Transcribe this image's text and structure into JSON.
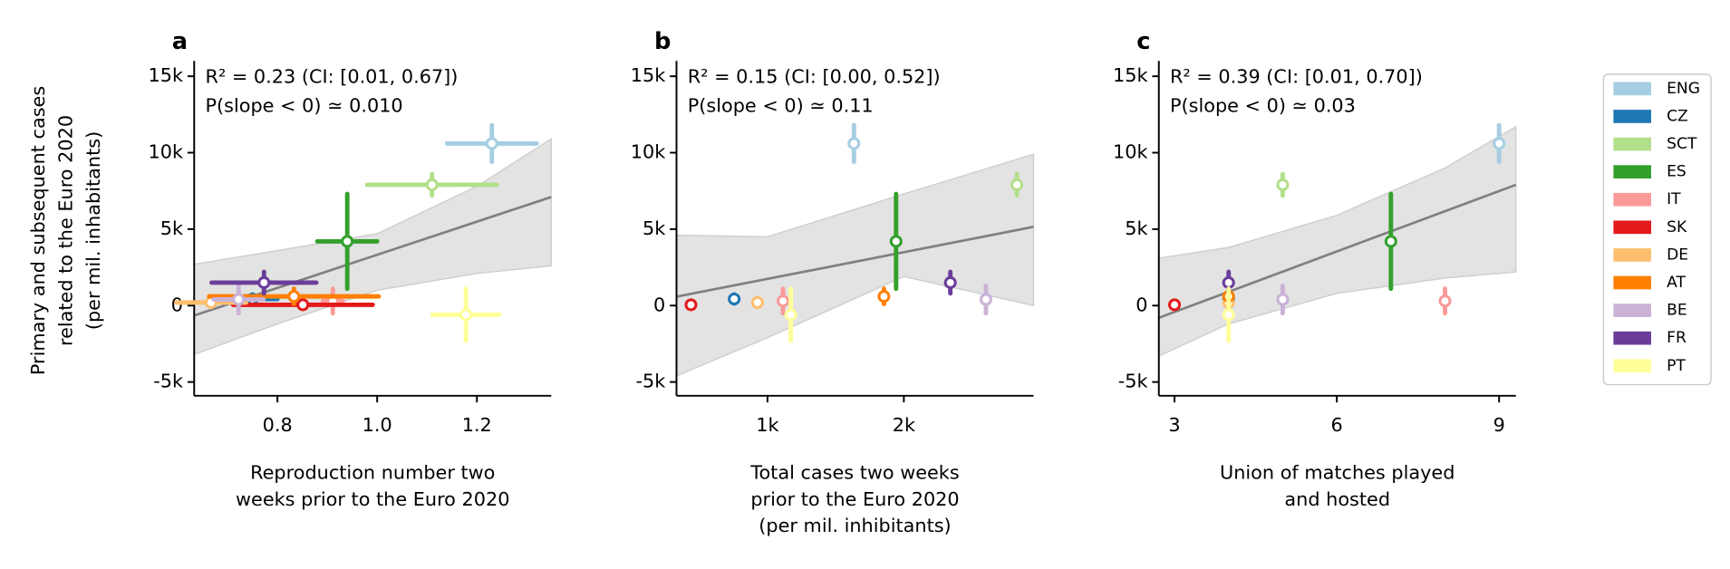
{
  "chart_data": [
    {
      "type": "scatter",
      "panel": "a",
      "annotations": [
        "R² = 0.23 (CI: [0.01, 0.67])",
        "P(slope < 0) ≃ 0.010"
      ],
      "xlabel": [
        "Reproduction number two",
        "weeks prior to the Euro 2020"
      ],
      "ylabel": [
        "Primary and subsequent cases",
        "related to the Euro 2020",
        "(per mil. inhabitants)"
      ],
      "xlim": [
        0.633,
        1.349
      ],
      "ylim": [
        -5900,
        16000
      ],
      "xticks": [
        0.8,
        {
          "value": 1.0,
          "label": "1.0"
        },
        1.2
      ],
      "yticks": [
        {
          "value": -5000,
          "label": "-5k"
        },
        0,
        {
          "value": 5000,
          "label": "5k"
        },
        {
          "value": 10000,
          "label": "10k"
        },
        {
          "value": 15000,
          "label": "15k"
        }
      ],
      "fit": {
        "x": [
          0.633,
          1.349
        ],
        "values": [
          -650,
          7100
        ]
      },
      "band": {
        "x": [
          0.633,
          0.8,
          1.0,
          1.2,
          1.349
        ],
        "upper": [
          2700,
          3600,
          4700,
          7800,
          10900
        ],
        "lower": [
          -3200,
          -1200,
          1000,
          2100,
          2600
        ]
      },
      "series": [
        {
          "name": "ENG",
          "color": "#a6cee3",
          "x": [
            1.23
          ],
          "values": [
            10600
          ],
          "x_err": [
            0.09
          ],
          "y_err": [
            1200
          ]
        },
        {
          "name": "CZ",
          "color": "#1f78b4",
          "x": [
            0.75
          ],
          "values": [
            430
          ],
          "x_err": [
            0.05
          ],
          "y_err": [
            300
          ]
        },
        {
          "name": "SCT",
          "color": "#b2df8a",
          "x": [
            1.11
          ],
          "values": [
            7900
          ],
          "x_err": [
            0.13
          ],
          "y_err": [
            700
          ]
        },
        {
          "name": "ES",
          "color": "#33a02c",
          "x": [
            0.94
          ],
          "values": [
            4200
          ],
          "x_err": [
            0.06
          ],
          "y_err": [
            3100
          ]
        },
        {
          "name": "IT",
          "color": "#fb9a99",
          "x": [
            0.911
          ],
          "values": [
            300
          ],
          "x_err": [
            0.02
          ],
          "y_err": [
            800
          ]
        },
        {
          "name": "SK",
          "color": "#e31a1c",
          "x": [
            0.851
          ],
          "values": [
            50
          ],
          "x_err": [
            0.14
          ],
          "y_err": [
            250
          ]
        },
        {
          "name": "DE",
          "color": "#fdbf6f",
          "x": [
            0.667
          ],
          "values": [
            200
          ],
          "x_err": [
            0.07
          ],
          "y_err": [
            300
          ]
        },
        {
          "name": "AT",
          "color": "#ff7f00",
          "x": [
            0.833
          ],
          "values": [
            600
          ],
          "x_err": [
            0.17
          ],
          "y_err": [
            500
          ]
        },
        {
          "name": "BE",
          "color": "#cab2d6",
          "x": [
            0.722
          ],
          "values": [
            400
          ],
          "x_err": [
            0.05
          ],
          "y_err": [
            900
          ]
        },
        {
          "name": "FR",
          "color": "#6a3d9a",
          "x": [
            0.773
          ],
          "values": [
            1500
          ],
          "x_err": [
            0.105
          ],
          "y_err": [
            700
          ]
        },
        {
          "name": "PT",
          "color": "#ffff99",
          "x": [
            1.178
          ],
          "values": [
            -600
          ],
          "x_err": [
            0.067
          ],
          "y_err": [
            1700
          ]
        }
      ]
    },
    {
      "type": "scatter",
      "panel": "b",
      "annotations": [
        "R² = 0.15 (CI: [0.00, 0.52])",
        "P(slope < 0) ≃ 0.11"
      ],
      "xlabel": [
        "Total cases two weeks",
        "prior to the Euro 2020",
        "(per mil. inhibitants)"
      ],
      "xlim": [
        333,
        2951
      ],
      "ylim": [
        -5900,
        16000
      ],
      "xticks": [
        {
          "value": 1000,
          "label": "1k"
        },
        {
          "value": 2000,
          "label": "2k"
        }
      ],
      "yticks": [
        {
          "value": -5000,
          "label": "-5k"
        },
        0,
        {
          "value": 5000,
          "label": "5k"
        },
        {
          "value": 10000,
          "label": "10k"
        },
        {
          "value": 15000,
          "label": "15k"
        }
      ],
      "fit": {
        "x": [
          333,
          2951
        ],
        "values": [
          580,
          5150
        ]
      },
      "band": {
        "x": [
          333,
          1000,
          2000,
          2951
        ],
        "upper": [
          4600,
          4500,
          7300,
          9900
        ],
        "lower": [
          -4600,
          -2100,
          1900,
          0
        ]
      },
      "series": [
        {
          "x": [
            1634
          ],
          "values": [
            10600
          ],
          "y_err": [
            1200
          ]
        },
        {
          "x": [
            756
          ],
          "values": [
            430
          ],
          "y_err": [
            300
          ]
        },
        {
          "x": [
            2829
          ],
          "values": [
            7900
          ],
          "y_err": [
            700
          ]
        },
        {
          "x": [
            1943
          ],
          "values": [
            4200
          ],
          "y_err": [
            3100
          ]
        },
        {
          "x": [
            1114
          ],
          "values": [
            300
          ],
          "y_err": [
            800
          ]
        },
        {
          "x": [
            439
          ],
          "values": [
            50
          ],
          "y_err": [
            250
          ]
        },
        {
          "x": [
            927
          ],
          "values": [
            200
          ],
          "y_err": [
            300
          ]
        },
        {
          "x": [
            1854
          ],
          "values": [
            600
          ],
          "y_err": [
            500
          ]
        },
        {
          "x": [
            2602
          ],
          "values": [
            400
          ],
          "y_err": [
            900
          ]
        },
        {
          "x": [
            2341
          ],
          "values": [
            1500
          ],
          "y_err": [
            700
          ]
        },
        {
          "x": [
            1171
          ],
          "values": [
            -600
          ],
          "y_err": [
            1700
          ]
        }
      ]
    },
    {
      "type": "scatter",
      "panel": "c",
      "annotations": [
        "R² = 0.39 (CI: [0.01, 0.70])",
        "P(slope < 0) ≃ 0.03"
      ],
      "xlabel": [
        "Union of matches played",
        "and hosted"
      ],
      "xlim": [
        2.71,
        9.31
      ],
      "ylim": [
        -5900,
        16000
      ],
      "xticks": [
        3,
        6,
        9
      ],
      "yticks": [
        {
          "value": -5000,
          "label": "-5k"
        },
        0,
        {
          "value": 5000,
          "label": "5k"
        },
        {
          "value": 10000,
          "label": "10k"
        },
        {
          "value": 15000,
          "label": "15k"
        }
      ],
      "fit": {
        "x": [
          2.71,
          9.31
        ],
        "values": [
          -800,
          7900
        ]
      },
      "band": {
        "x": [
          2.71,
          4,
          6,
          8,
          9.31
        ],
        "upper": [
          3100,
          3800,
          5900,
          9000,
          11700
        ],
        "lower": [
          -3300,
          -1200,
          800,
          1800,
          2200
        ]
      },
      "series": [
        {
          "x": [
            9
          ],
          "values": [
            10600
          ],
          "y_err": [
            1200
          ]
        },
        {
          "x": [
            4
          ],
          "values": [
            430
          ],
          "y_err": [
            300
          ]
        },
        {
          "x": [
            5
          ],
          "values": [
            7900
          ],
          "y_err": [
            700
          ]
        },
        {
          "x": [
            7
          ],
          "values": [
            4200
          ],
          "y_err": [
            3100
          ]
        },
        {
          "x": [
            8
          ],
          "values": [
            300
          ],
          "y_err": [
            800
          ]
        },
        {
          "x": [
            3
          ],
          "values": [
            50
          ],
          "y_err": [
            250
          ]
        },
        {
          "x": [
            4
          ],
          "values": [
            200
          ],
          "y_err": [
            300
          ]
        },
        {
          "x": [
            4
          ],
          "values": [
            600
          ],
          "y_err": [
            500
          ]
        },
        {
          "x": [
            5
          ],
          "values": [
            400
          ],
          "y_err": [
            900
          ]
        },
        {
          "x": [
            4
          ],
          "values": [
            1500
          ],
          "y_err": [
            700
          ]
        },
        {
          "x": [
            4
          ],
          "values": [
            -600
          ],
          "y_err": [
            1700
          ]
        }
      ]
    }
  ]
}
